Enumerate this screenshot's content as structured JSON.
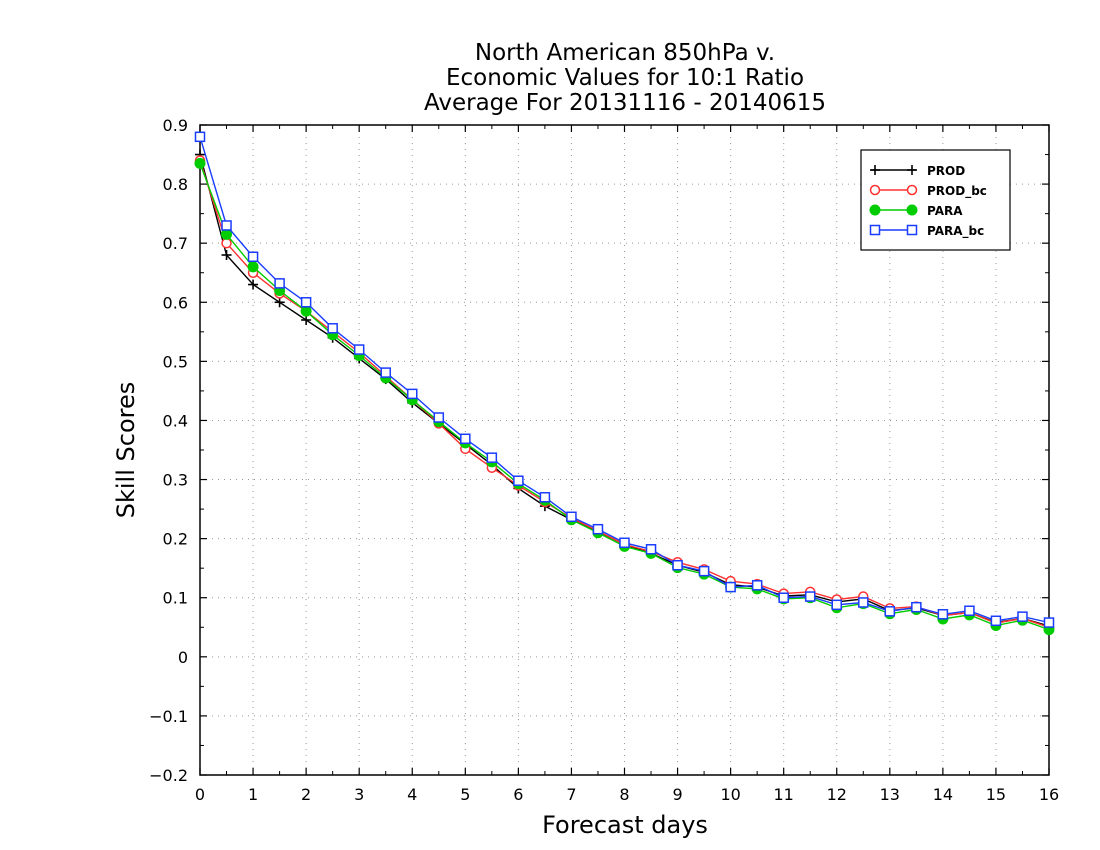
{
  "chart_data": {
    "type": "line",
    "title": [
      "North American 850hPa v.",
      "Economic Values for 10:1 Ratio",
      "Average For 20131116 - 20140615"
    ],
    "xlabel": "Forecast days",
    "ylabel": "Skill Scores",
    "xlim": [
      0,
      16
    ],
    "ylim": [
      -0.2,
      0.9
    ],
    "x_ticks": [
      0,
      1,
      2,
      3,
      4,
      5,
      6,
      7,
      8,
      9,
      10,
      11,
      12,
      13,
      14,
      15,
      16
    ],
    "y_ticks": [
      -0.2,
      -0.1,
      0,
      0.1,
      0.2,
      0.3,
      0.4,
      0.5,
      0.6,
      0.7,
      0.8,
      0.9
    ],
    "x_tick_labels": [
      "0",
      "1",
      "2",
      "3",
      "4",
      "5",
      "6",
      "7",
      "8",
      "9",
      "10",
      "11",
      "12",
      "13",
      "14",
      "15",
      "16"
    ],
    "y_tick_labels": [
      "−0.2",
      "−0.1",
      "0",
      "0.1",
      "0.2",
      "0.3",
      "0.4",
      "0.5",
      "0.6",
      "0.7",
      "0.8",
      "0.9"
    ],
    "grid": true,
    "legend_position": "top-right",
    "x": [
      0,
      0.5,
      1,
      1.5,
      2,
      2.5,
      3,
      3.5,
      4,
      4.5,
      5,
      5.5,
      6,
      6.5,
      7,
      7.5,
      8,
      8.5,
      9,
      9.5,
      10,
      10.5,
      11,
      11.5,
      12,
      12.5,
      13,
      13.5,
      14,
      14.5,
      15,
      15.5,
      16
    ],
    "series": [
      {
        "name": "PROD",
        "color": "#000000",
        "marker": "plus",
        "values": [
          0.85,
          0.68,
          0.63,
          0.6,
          0.57,
          0.54,
          0.505,
          0.47,
          0.43,
          0.395,
          0.36,
          0.325,
          0.285,
          0.255,
          0.232,
          0.212,
          0.19,
          0.175,
          0.155,
          0.143,
          0.122,
          0.118,
          0.103,
          0.105,
          0.093,
          0.098,
          0.078,
          0.083,
          0.07,
          0.075,
          0.058,
          0.065,
          0.052
        ]
      },
      {
        "name": "PROD_bc",
        "color": "#ff3030",
        "marker": "circle-open",
        "values": [
          0.84,
          0.7,
          0.65,
          0.615,
          0.585,
          0.55,
          0.515,
          0.475,
          0.435,
          0.395,
          0.352,
          0.32,
          0.29,
          0.262,
          0.235,
          0.213,
          0.19,
          0.178,
          0.16,
          0.148,
          0.128,
          0.123,
          0.107,
          0.11,
          0.097,
          0.102,
          0.082,
          0.085,
          0.07,
          0.075,
          0.057,
          0.065,
          0.05
        ]
      },
      {
        "name": "PARA",
        "color": "#00cc00",
        "marker": "circle-filled",
        "values": [
          0.835,
          0.715,
          0.66,
          0.62,
          0.585,
          0.545,
          0.51,
          0.472,
          0.435,
          0.398,
          0.362,
          0.33,
          0.293,
          0.265,
          0.232,
          0.21,
          0.187,
          0.175,
          0.151,
          0.14,
          0.118,
          0.115,
          0.098,
          0.1,
          0.083,
          0.09,
          0.073,
          0.08,
          0.064,
          0.071,
          0.053,
          0.062,
          0.046
        ]
      },
      {
        "name": "PARA_bc",
        "color": "#1a3cff",
        "marker": "square-open",
        "values": [
          0.88,
          0.73,
          0.677,
          0.632,
          0.6,
          0.556,
          0.52,
          0.481,
          0.445,
          0.405,
          0.369,
          0.337,
          0.298,
          0.27,
          0.237,
          0.216,
          0.193,
          0.182,
          0.155,
          0.145,
          0.118,
          0.121,
          0.1,
          0.102,
          0.088,
          0.092,
          0.077,
          0.084,
          0.072,
          0.078,
          0.061,
          0.068,
          0.058
        ]
      }
    ]
  }
}
